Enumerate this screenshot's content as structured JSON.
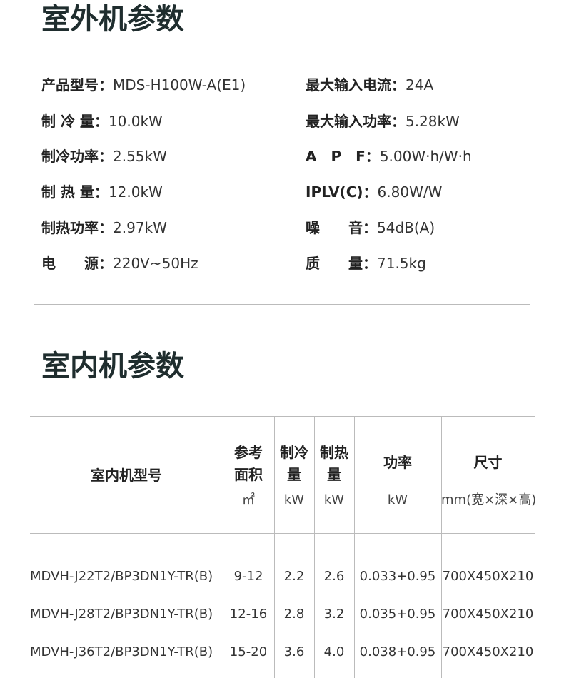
{
  "outdoor": {
    "title": "室外机参数",
    "specs_left": [
      {
        "label": "产品型号：",
        "value": "MDS-H100W-A(E1)"
      },
      {
        "label": "制 冷 量：",
        "value": "10.0kW"
      },
      {
        "label": "制冷功率：",
        "value": "2.55kW"
      },
      {
        "label": "制 热 量：",
        "value": "12.0kW"
      },
      {
        "label": "制热功率：",
        "value": "2.97kW"
      },
      {
        "label": "电　　源：",
        "value": "220V~50Hz"
      }
    ],
    "specs_right": [
      {
        "label": "最大输入电流：",
        "value": "24A"
      },
      {
        "label": "最大输入功率：",
        "value": "5.28kW"
      },
      {
        "label": "A　P　F：",
        "value": "5.00W·h/W·h"
      },
      {
        "label": "IPLV(C)：",
        "value": "6.80W/W"
      },
      {
        "label": "噪　　音：",
        "value": "54dB(A)"
      },
      {
        "label": "质　　量：",
        "value": "71.5kg"
      }
    ]
  },
  "indoor": {
    "title": "室内机参数",
    "table": {
      "headers": [
        {
          "name": "室内机型号",
          "unit": null
        },
        {
          "name": "参考面积",
          "unit": "㎡"
        },
        {
          "name": "制冷量",
          "unit": "kW"
        },
        {
          "name": "制热量",
          "unit": "kW"
        },
        {
          "name": "功率",
          "unit": "kW"
        },
        {
          "name": "尺寸",
          "unit": "mm(宽×深×高)"
        }
      ],
      "rows": [
        [
          "MDVH-J22T2/BP3DN1Y-TR(B)",
          "9-12",
          "2.2",
          "2.6",
          "0.033+0.95",
          "700X450X210"
        ],
        [
          "MDVH-J28T2/BP3DN1Y-TR(B)",
          "12-16",
          "2.8",
          "3.2",
          "0.035+0.95",
          "700X450X210"
        ],
        [
          "MDVH-J36T2/BP3DN1Y-TR(B)",
          "15-20",
          "3.6",
          "4.0",
          "0.038+0.95",
          "700X450X210"
        ]
      ]
    }
  }
}
